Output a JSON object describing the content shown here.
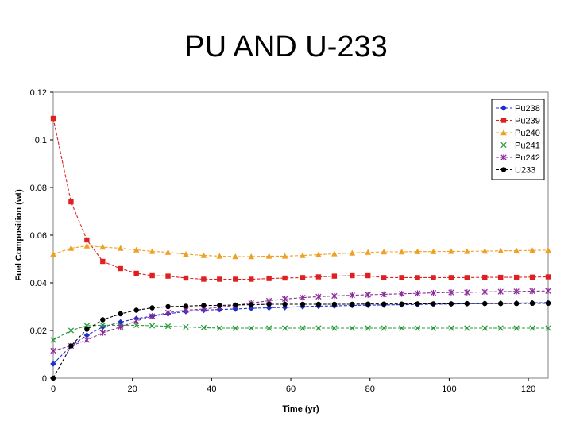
{
  "slide": {
    "title": "PU AND U-233"
  },
  "chart_data": {
    "type": "line",
    "title": "",
    "xlabel": "Time (yr)",
    "ylabel": "Fuel Composition (wt)",
    "xlim": [
      0,
      125
    ],
    "ylim": [
      0,
      0.12
    ],
    "x_ticks": [
      0,
      20,
      40,
      60,
      80,
      100,
      120
    ],
    "y_ticks": [
      0,
      0.02,
      0.04,
      0.06,
      0.08,
      0.1,
      0.12
    ],
    "x_tick_labels": [
      "0",
      "20",
      "40",
      "60",
      "80",
      "100",
      "120"
    ],
    "y_tick_labels": [
      "0",
      "0.02",
      "0.04",
      "0.06",
      "0.08",
      "0.1",
      "0.12"
    ],
    "grid": false,
    "legend_position": "top-right",
    "x": [
      0,
      4.5,
      8.5,
      12.5,
      17,
      21,
      25,
      29,
      33.5,
      38,
      42,
      46,
      50,
      54.5,
      58.5,
      63,
      67,
      71,
      75.5,
      79.5,
      83.5,
      88,
      92,
      96,
      100.5,
      104.5,
      109,
      113,
      117,
      121,
      125
    ],
    "series": [
      {
        "name": "Pu238",
        "color": "#1f2fcf",
        "marker": "diamond",
        "values": [
          0.006,
          0.0135,
          0.018,
          0.0215,
          0.0235,
          0.025,
          0.026,
          0.027,
          0.028,
          0.0285,
          0.0288,
          0.029,
          0.0293,
          0.0295,
          0.0297,
          0.03,
          0.0302,
          0.0303,
          0.0305,
          0.0306,
          0.0307,
          0.0308,
          0.0309,
          0.031,
          0.0311,
          0.0312,
          0.0313,
          0.0314,
          0.0315,
          0.0316,
          0.0317
        ]
      },
      {
        "name": "Pu239",
        "color": "#e02020",
        "marker": "square",
        "values": [
          0.109,
          0.074,
          0.058,
          0.049,
          0.046,
          0.044,
          0.043,
          0.0428,
          0.042,
          0.0415,
          0.0415,
          0.0415,
          0.0415,
          0.0418,
          0.042,
          0.0422,
          0.0425,
          0.0428,
          0.043,
          0.043,
          0.0422,
          0.0422,
          0.0422,
          0.0422,
          0.0422,
          0.0422,
          0.0423,
          0.0423,
          0.0423,
          0.0424,
          0.0425
        ]
      },
      {
        "name": "Pu240",
        "color": "#f0a020",
        "marker": "triangle",
        "values": [
          0.052,
          0.0545,
          0.0555,
          0.055,
          0.0545,
          0.0538,
          0.0532,
          0.0528,
          0.052,
          0.0515,
          0.0512,
          0.051,
          0.051,
          0.0512,
          0.0512,
          0.0515,
          0.0518,
          0.0522,
          0.0525,
          0.0528,
          0.053,
          0.053,
          0.0531,
          0.0531,
          0.0532,
          0.0532,
          0.0533,
          0.0534,
          0.0535,
          0.0536,
          0.0537
        ]
      },
      {
        "name": "Pu241",
        "color": "#2a9a3a",
        "marker": "x",
        "values": [
          0.016,
          0.02,
          0.022,
          0.0222,
          0.0222,
          0.0222,
          0.022,
          0.0218,
          0.0215,
          0.0212,
          0.021,
          0.021,
          0.021,
          0.021,
          0.021,
          0.021,
          0.021,
          0.021,
          0.021,
          0.021,
          0.021,
          0.021,
          0.021,
          0.021,
          0.021,
          0.021,
          0.021,
          0.021,
          0.021,
          0.021,
          0.021
        ]
      },
      {
        "name": "Pu242",
        "color": "#8a2a9a",
        "marker": "star",
        "values": [
          0.0115,
          0.0135,
          0.016,
          0.019,
          0.0215,
          0.024,
          0.026,
          0.0275,
          0.0285,
          0.029,
          0.0298,
          0.0305,
          0.0315,
          0.0325,
          0.0332,
          0.0338,
          0.0342,
          0.0345,
          0.0348,
          0.035,
          0.0352,
          0.0354,
          0.0356,
          0.0358,
          0.036,
          0.036,
          0.0362,
          0.0363,
          0.0364,
          0.0365,
          0.0366
        ]
      },
      {
        "name": "U233",
        "color": "#000000",
        "marker": "circle",
        "values": [
          0.0,
          0.0135,
          0.0205,
          0.0245,
          0.027,
          0.0285,
          0.0295,
          0.03,
          0.0302,
          0.0305,
          0.0305,
          0.0307,
          0.0308,
          0.031,
          0.031,
          0.031,
          0.031,
          0.031,
          0.031,
          0.0311,
          0.0311,
          0.0311,
          0.0312,
          0.0312,
          0.0312,
          0.0313,
          0.0313,
          0.0313,
          0.0313,
          0.0314,
          0.0314
        ]
      }
    ]
  }
}
